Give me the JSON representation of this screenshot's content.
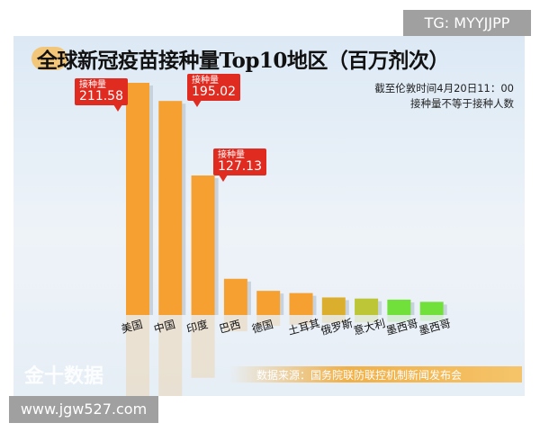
{
  "watermark_top": "TG: MYYJJPP",
  "watermark_bottom": "www.jgw527.com",
  "logo": "金十数据",
  "source": "数据来源：国务院联防联控机制新闻发布会",
  "chart_data": {
    "type": "bar",
    "title": "全球新冠疫苗接种量Top10地区（百万剂次）",
    "notes": [
      "截至伦敦时间4月20日11：00",
      "接种量不等于接种人数"
    ],
    "categories": [
      "美国",
      "中国",
      "印度",
      "巴西",
      "德国",
      "土耳其",
      "俄罗斯",
      "意大利",
      "墨西哥",
      "墨西哥"
    ],
    "values": [
      211.58,
      195.02,
      127.13,
      33,
      22,
      20,
      16,
      15,
      14,
      12
    ],
    "data_labels": [
      {
        "index": 0,
        "label": "接种量",
        "value": "211.58"
      },
      {
        "index": 1,
        "label": "接种量",
        "value": "195.02"
      },
      {
        "index": 2,
        "label": "接种量",
        "value": "127.13"
      }
    ],
    "colors": [
      "#f5a030",
      "#f5a030",
      "#f5a030",
      "#f5a030",
      "#f5a030",
      "#f5a030",
      "#dcae2e",
      "#bcc636",
      "#72e03a",
      "#72e03a"
    ],
    "ylim": [
      0,
      215
    ],
    "grid": false,
    "legend": "none"
  }
}
